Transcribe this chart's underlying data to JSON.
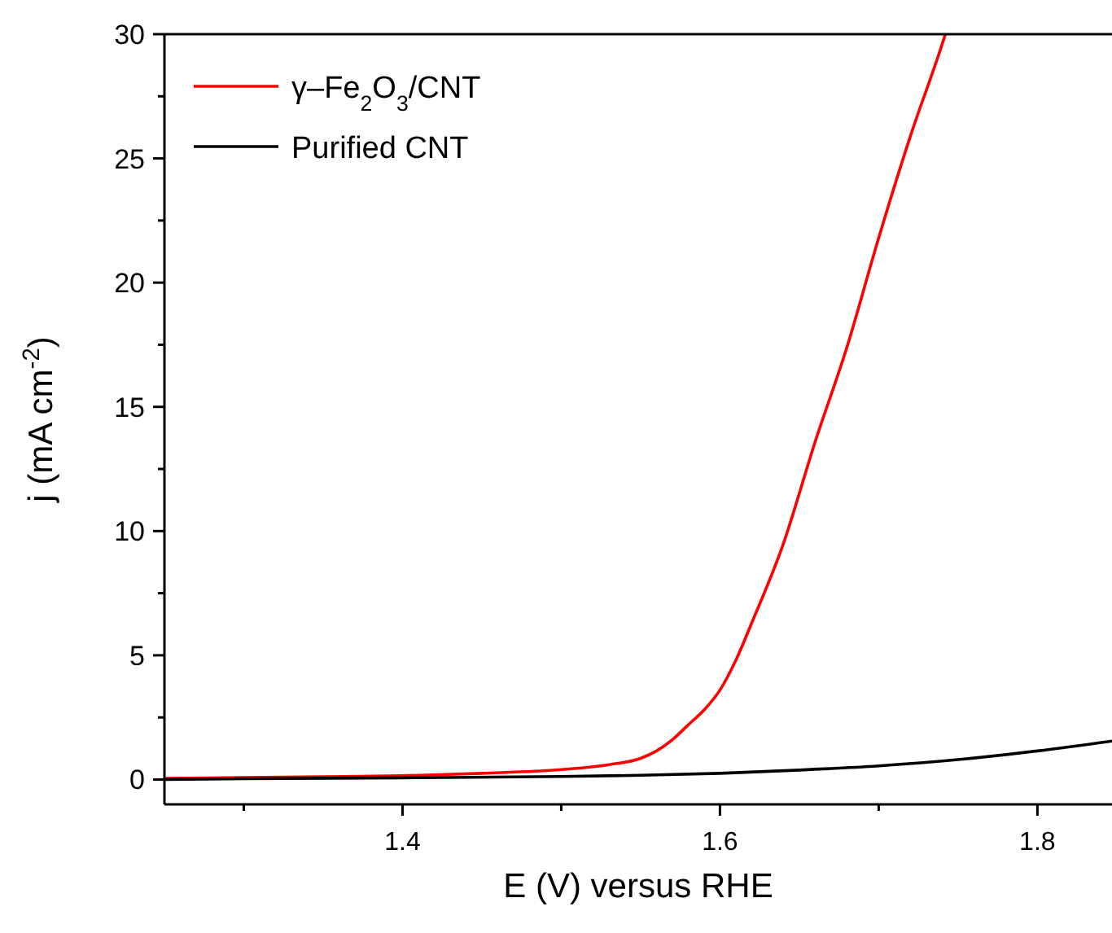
{
  "chart_data": {
    "type": "line",
    "xlabel": "E (V) versus RHE",
    "ylabel": "j (mA cm$^{-2}$)",
    "xlim": [
      1.25,
      1.847
    ],
    "ylim": [
      -1,
      30
    ],
    "xticks": [
      {
        "value": 1.3,
        "label": null
      },
      1.4,
      {
        "value": 1.5,
        "label": null
      },
      1.6,
      {
        "value": 1.7,
        "label": null
      },
      1.8
    ],
    "yticks": [
      0,
      {
        "value": 2.5,
        "label": null
      },
      5,
      {
        "value": 7.5,
        "label": null
      },
      10,
      {
        "value": 12.5,
        "label": null
      },
      15,
      {
        "value": 17.5,
        "label": null
      },
      20,
      {
        "value": 22.5,
        "label": null
      },
      25,
      {
        "value": 27.5,
        "label": null
      },
      30
    ],
    "grid": false,
    "legend": "top left",
    "marker": "none",
    "line_style": "solid",
    "series": [
      {
        "name": "γ–Fe$_{2}$O$_{3}$/CNT",
        "color": "#ff0000",
        "x": [
          1.25,
          1.3,
          1.35,
          1.4,
          1.45,
          1.5,
          1.53,
          1.55,
          1.56,
          1.57,
          1.58,
          1.59,
          1.6,
          1.61,
          1.62,
          1.64,
          1.66,
          1.68,
          1.7,
          1.72,
          1.74,
          1.742
        ],
        "values": [
          0.05,
          0.08,
          0.11,
          0.15,
          0.25,
          0.4,
          0.6,
          0.85,
          1.15,
          1.6,
          2.2,
          2.8,
          3.6,
          4.8,
          6.3,
          9.5,
          13.6,
          17.4,
          21.8,
          25.9,
          29.6,
          30
        ]
      },
      {
        "name": "Purified CNT",
        "color": "#000000",
        "x": [
          1.25,
          1.3,
          1.4,
          1.5,
          1.55,
          1.6,
          1.65,
          1.7,
          1.75,
          1.8,
          1.847
        ],
        "values": [
          0.0,
          0.03,
          0.07,
          0.12,
          0.17,
          0.25,
          0.38,
          0.55,
          0.8,
          1.15,
          1.55
        ]
      }
    ]
  }
}
